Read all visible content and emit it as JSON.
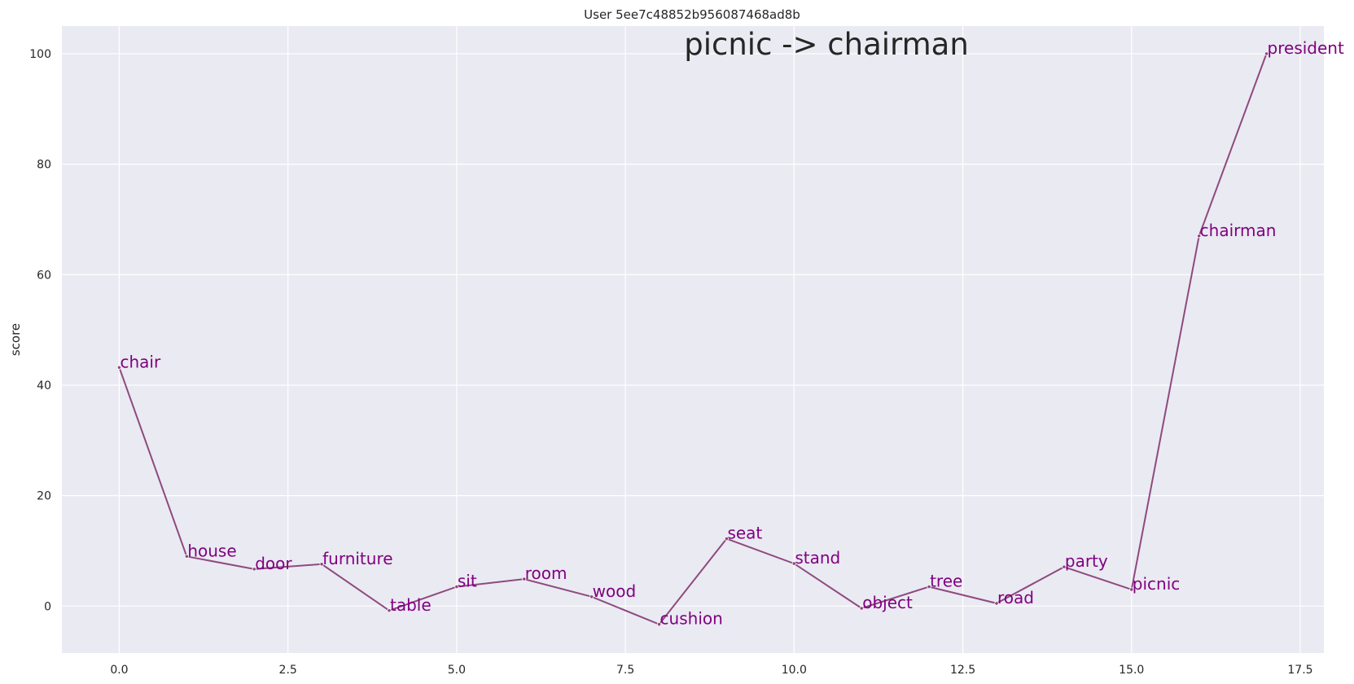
{
  "chart_data": {
    "type": "line",
    "title": "User 5ee7c48852b956087468ad8b",
    "annotation": "picnic -> chairman",
    "xlabel": "",
    "ylabel": "score",
    "xlim": [
      -0.85,
      17.85
    ],
    "ylim": [
      -8.5,
      105
    ],
    "xticks": [
      0.0,
      2.5,
      5.0,
      7.5,
      10.0,
      12.5,
      15.0,
      17.5
    ],
    "xtick_labels": [
      "0.0",
      "2.5",
      "5.0",
      "7.5",
      "10.0",
      "12.5",
      "15.0",
      "17.5"
    ],
    "yticks": [
      0,
      20,
      40,
      60,
      80,
      100
    ],
    "ytick_labels": [
      "0",
      "20",
      "40",
      "60",
      "80",
      "100"
    ],
    "grid": true,
    "line_color": "#8e4a7e",
    "label_color": "#800080",
    "points": [
      {
        "x": 0,
        "y": 43.2,
        "label": "chair"
      },
      {
        "x": 1,
        "y": 9.0,
        "label": "house"
      },
      {
        "x": 2,
        "y": 6.7,
        "label": "door"
      },
      {
        "x": 3,
        "y": 7.6,
        "label": "furniture"
      },
      {
        "x": 4,
        "y": -0.8,
        "label": "table"
      },
      {
        "x": 5,
        "y": 3.5,
        "label": "sit"
      },
      {
        "x": 6,
        "y": 4.9,
        "label": "room"
      },
      {
        "x": 7,
        "y": 1.7,
        "label": "wood"
      },
      {
        "x": 8,
        "y": -3.3,
        "label": "cushion"
      },
      {
        "x": 9,
        "y": 12.2,
        "label": "seat"
      },
      {
        "x": 10,
        "y": 7.7,
        "label": "stand"
      },
      {
        "x": 11,
        "y": -0.4,
        "label": "object"
      },
      {
        "x": 12,
        "y": 3.5,
        "label": "tree"
      },
      {
        "x": 13,
        "y": 0.5,
        "label": "road"
      },
      {
        "x": 14,
        "y": 7.1,
        "label": "party"
      },
      {
        "x": 15,
        "y": 3.0,
        "label": "picnic"
      },
      {
        "x": 16,
        "y": 67.0,
        "label": "chairman"
      },
      {
        "x": 17,
        "y": 100.0,
        "label": "president"
      }
    ]
  }
}
